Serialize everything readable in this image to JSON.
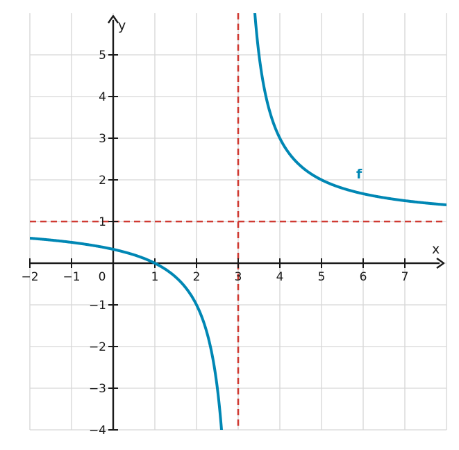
{
  "chart_data": {
    "type": "line",
    "title": "",
    "xlabel": "x",
    "ylabel": "y",
    "xlim": [
      -2,
      8
    ],
    "ylim": [
      -4,
      6
    ],
    "grid": true,
    "x_ticks": [
      -2,
      -1,
      0,
      1,
      2,
      3,
      4,
      5,
      6,
      7
    ],
    "x_tick_labels": [
      "−2",
      "−1",
      "0",
      "1",
      "2",
      "3",
      "4",
      "5",
      "6",
      "7"
    ],
    "y_ticks": [
      -4,
      -3,
      -2,
      -1,
      1,
      2,
      3,
      4,
      5
    ],
    "y_tick_labels": [
      "−4",
      "−3",
      "−2",
      "−1",
      "1",
      "2",
      "3",
      "4",
      "5"
    ],
    "series": [
      {
        "name": "f",
        "color": "#0087b4",
        "function": "(x - 1) / (x - 3)",
        "x": [
          -2,
          -1,
          0,
          1,
          2,
          2.5,
          2.64,
          3.36,
          3.5,
          4,
          5,
          6,
          7,
          8
        ],
        "y": [
          0.6,
          0.5,
          0.333,
          0,
          -1,
          -3,
          -4.56,
          6.56,
          5,
          3,
          2,
          1.667,
          1.5,
          1.4
        ]
      }
    ],
    "asymptotes": [
      {
        "orientation": "vertical",
        "value": 3,
        "color": "#d03a32",
        "style": "dashed"
      },
      {
        "orientation": "horizontal",
        "value": 1,
        "color": "#d03a32",
        "style": "dashed"
      }
    ]
  }
}
